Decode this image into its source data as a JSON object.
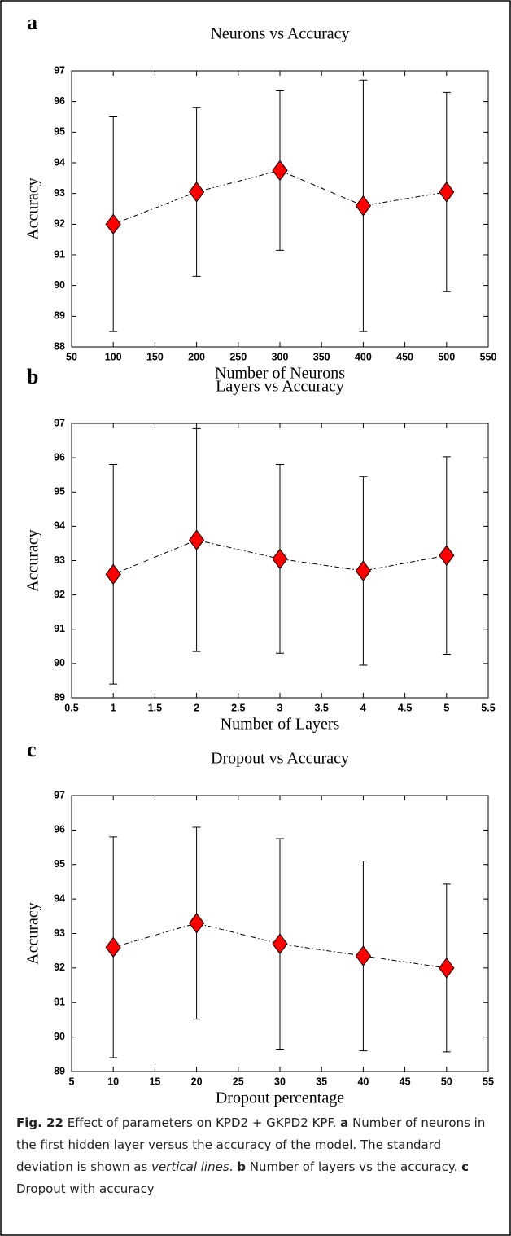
{
  "chart_data": [
    {
      "type": "line",
      "panel_label": "a",
      "title": "Neurons vs Accuracy",
      "xlabel": "Number of Neurons",
      "ylabel": "Accuracy",
      "x": [
        100,
        200,
        300,
        400,
        500
      ],
      "values": [
        92.0,
        93.05,
        93.75,
        92.6,
        93.05
      ],
      "errors": [
        3.5,
        2.75,
        2.6,
        4.1,
        3.25
      ],
      "color": "#ff0000",
      "line_color": "#000000",
      "xlim": [
        50,
        550
      ],
      "xticks": [
        50,
        100,
        150,
        200,
        250,
        300,
        350,
        400,
        450,
        500,
        550
      ],
      "ylim": [
        88,
        97
      ],
      "yticks": [
        88,
        89,
        90,
        91,
        92,
        93,
        94,
        95,
        96,
        97
      ]
    },
    {
      "type": "line",
      "panel_label": "b",
      "title": "Layers vs Accuracy",
      "xlabel": "Number of Layers",
      "ylabel": "Accuracy",
      "x": [
        1,
        2,
        3,
        4,
        5
      ],
      "values": [
        92.6,
        93.6,
        93.05,
        92.7,
        93.15
      ],
      "errors": [
        3.2,
        3.25,
        2.75,
        2.75,
        2.88
      ],
      "color": "#ff0000",
      "line_color": "#000000",
      "xlim": [
        0.5,
        5.5
      ],
      "xticks": [
        0.5,
        1,
        1.5,
        2,
        2.5,
        3,
        3.5,
        4,
        4.5,
        5,
        5.5
      ],
      "ylim": [
        89,
        97
      ],
      "yticks": [
        89,
        90,
        91,
        92,
        93,
        94,
        95,
        96,
        97
      ]
    },
    {
      "type": "line",
      "panel_label": "c",
      "title": "Dropout vs Accuracy",
      "xlabel": "Dropout percentage",
      "ylabel": "Accuracy",
      "x": [
        10,
        20,
        30,
        40,
        50
      ],
      "values": [
        92.6,
        93.3,
        92.7,
        92.35,
        92.0
      ],
      "errors": [
        3.2,
        2.78,
        3.05,
        2.75,
        2.43
      ],
      "color": "#ff0000",
      "line_color": "#000000",
      "xlim": [
        5,
        55
      ],
      "xticks": [
        5,
        10,
        15,
        20,
        25,
        30,
        35,
        40,
        45,
        50,
        55
      ],
      "ylim": [
        89,
        97
      ],
      "yticks": [
        89,
        90,
        91,
        92,
        93,
        94,
        95,
        96,
        97
      ]
    }
  ],
  "caption": [
    "Fig. 22",
    " Effect of parameters on KPD2 + GKPD2 KPF. ",
    "a",
    " Number of neurons in the first hidden layer versus the accuracy of the model. The standard deviation is shown as ",
    "vertical lines",
    ". ",
    "b",
    " Number of layers vs the accuracy. ",
    "c",
    " Dropout with accuracy"
  ]
}
